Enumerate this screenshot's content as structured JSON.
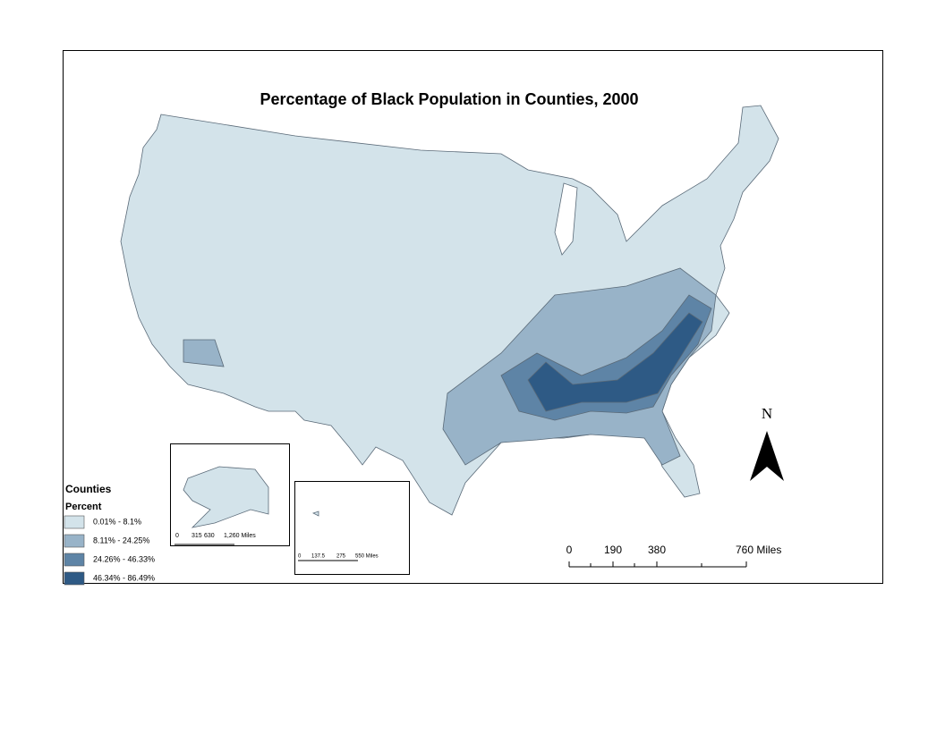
{
  "title": "Percentage of Black Population in Counties, 2000",
  "legend": {
    "title": "Counties",
    "subtitle": "Percent",
    "classes": [
      {
        "label": "0.01% - 8.1%",
        "color": "#d3e3ea"
      },
      {
        "label": "8.11% - 24.25%",
        "color": "#98b3c8"
      },
      {
        "label": "24.26% - 46.33%",
        "color": "#5e84a6"
      },
      {
        "label": "46.34% - 86.49%",
        "color": "#2e5a85"
      }
    ]
  },
  "north_arrow": {
    "label": "N"
  },
  "scale_bar": {
    "labels": [
      "0",
      "190",
      "380",
      "760 Miles"
    ]
  },
  "alaska_inset": {
    "scale_labels": [
      "0",
      "315",
      "630",
      "1,260 Miles"
    ]
  },
  "hawaii_inset": {
    "scale_labels": [
      "0",
      "137.5",
      "275",
      "550 Miles"
    ]
  }
}
